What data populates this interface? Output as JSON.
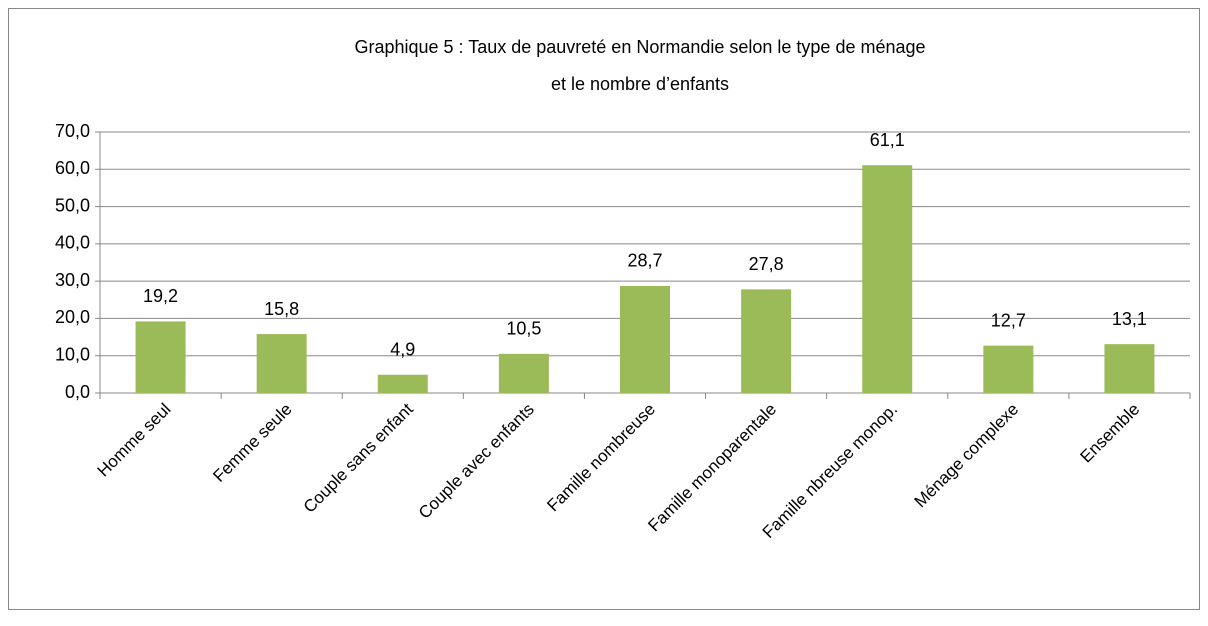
{
  "chart_data": {
    "type": "bar",
    "title": [
      "Graphique 5 : Taux de pauvreté en Normandie selon le type de ménage",
      "et le nombre d’enfants"
    ],
    "categories": [
      "Homme seul",
      "Femme seule",
      "Couple sans enfant",
      "Couple avec enfants",
      "Famille nombreuse",
      "Famille monoparentale",
      "Famille nbreuse monop.",
      "Ménage complexe",
      "Ensemble"
    ],
    "values": [
      19.2,
      15.8,
      4.9,
      10.5,
      28.7,
      27.8,
      61.1,
      12.7,
      13.1
    ],
    "value_labels": [
      "19,2",
      "15,8",
      "4,9",
      "10,5",
      "28,7",
      "27,8",
      "61,1",
      "12,7",
      "13,1"
    ],
    "color": "#9bbb59",
    "ylim": [
      0,
      70
    ],
    "yticks": [
      {
        "value": 0,
        "label": "0,0"
      },
      {
        "value": 10,
        "label": "10,0"
      },
      {
        "value": 20,
        "label": "20,0"
      },
      {
        "value": 30,
        "label": "30,0"
      },
      {
        "value": 40,
        "label": "40,0"
      },
      {
        "value": 50,
        "label": "50,0"
      },
      {
        "value": 60,
        "label": "60,0"
      },
      {
        "value": 70,
        "label": "70,0"
      }
    ],
    "grid": true
  }
}
